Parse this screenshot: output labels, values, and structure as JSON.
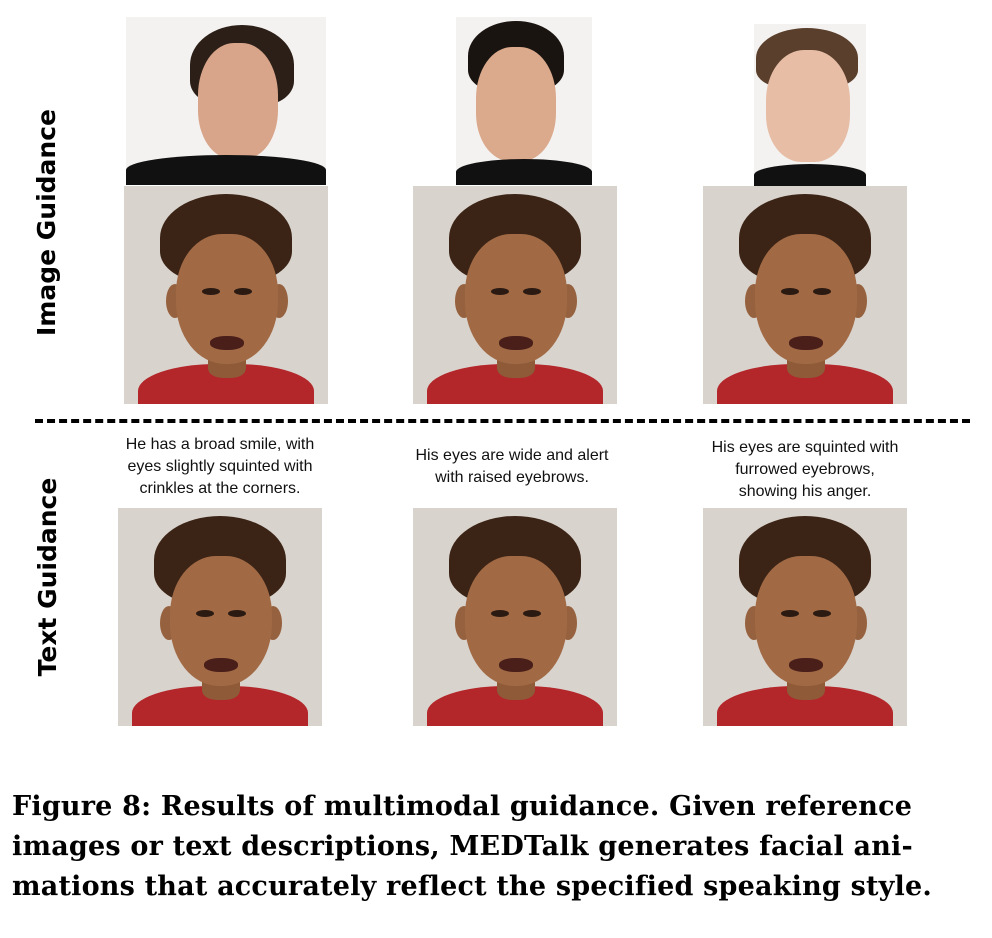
{
  "row_labels": {
    "image": "Image Guidance",
    "text": "Text Guidance"
  },
  "descriptions": [
    [
      "He has a broad smile, with",
      "eyes slightly squinted with",
      "crinkles at the corners."
    ],
    [
      "His eyes are wide and alert",
      "with raised eyebrows."
    ],
    [
      "His eyes are squinted with",
      "furrowed eyebrows,",
      "showing his anger."
    ]
  ],
  "caption": [
    "Figure 8: Results of multimodal guidance. Given reference",
    "images or text descriptions, MEDTalk generates facial ani-",
    "mations that accurately reflect the specified speaking style."
  ],
  "colors": {
    "hoodie": "#b3262a",
    "skin": "#a16a45",
    "hair": "#3b2416",
    "background": "#d9d3cd"
  }
}
